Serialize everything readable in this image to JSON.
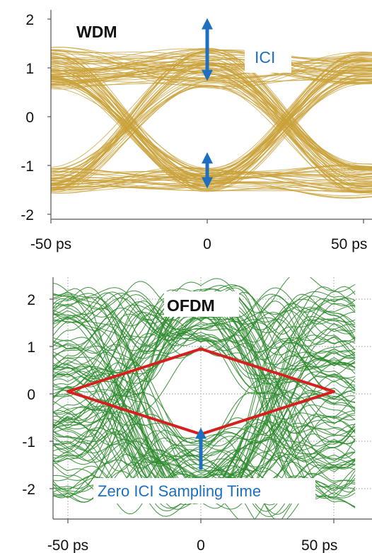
{
  "chart_data": [
    {
      "type": "line",
      "subtype": "eye-diagram",
      "title": "WDM",
      "x_ticks": [
        "-50 ps",
        "0",
        "50 ps"
      ],
      "x_tick_values": [
        -50,
        0,
        50
      ],
      "y_ticks": [
        "2",
        "1",
        "0",
        "-1",
        "-2"
      ],
      "y_tick_values": [
        2,
        1,
        0,
        -1,
        -2
      ],
      "xlim": [
        -55,
        55
      ],
      "ylim": [
        -2,
        2.2
      ],
      "levels": [
        1,
        -1.3
      ],
      "level_spread": 0.65,
      "trace_color": "#c9a13a",
      "grid": false,
      "annotation": {
        "label": "ICI",
        "upper_arrow": {
          "x": 0,
          "y_from": 2.05,
          "y_to": 0.7
        },
        "lower_arrow": {
          "x": 0,
          "y_from": -0.7,
          "y_to": -1.5
        },
        "arrow_color": "#1f6fc0"
      }
    },
    {
      "type": "line",
      "subtype": "eye-diagram",
      "title": "OFDM",
      "x_ticks": [
        "-50 ps",
        "0",
        "50 ps"
      ],
      "x_tick_values": [
        -50,
        0,
        50
      ],
      "y_ticks": [
        "2",
        "1",
        "0",
        "-1",
        "-2"
      ],
      "y_tick_values": [
        2,
        1,
        0,
        -1,
        -2
      ],
      "xlim": [
        -55,
        55
      ],
      "ylim": [
        -2.6,
        2.5
      ],
      "trace_color": "#2e8b2e",
      "grid": true,
      "eye_diamond": {
        "points": [
          [
            -50,
            0.05
          ],
          [
            0,
            0.95
          ],
          [
            50,
            0.05
          ],
          [
            0,
            -0.85
          ]
        ],
        "color": "#d62020"
      },
      "annotation": {
        "label": "Zero ICI Sampling Time",
        "arrow": {
          "x": 0,
          "y_from": -1.6,
          "y_to": -0.95
        },
        "arrow_color": "#1f6fc0"
      }
    }
  ]
}
